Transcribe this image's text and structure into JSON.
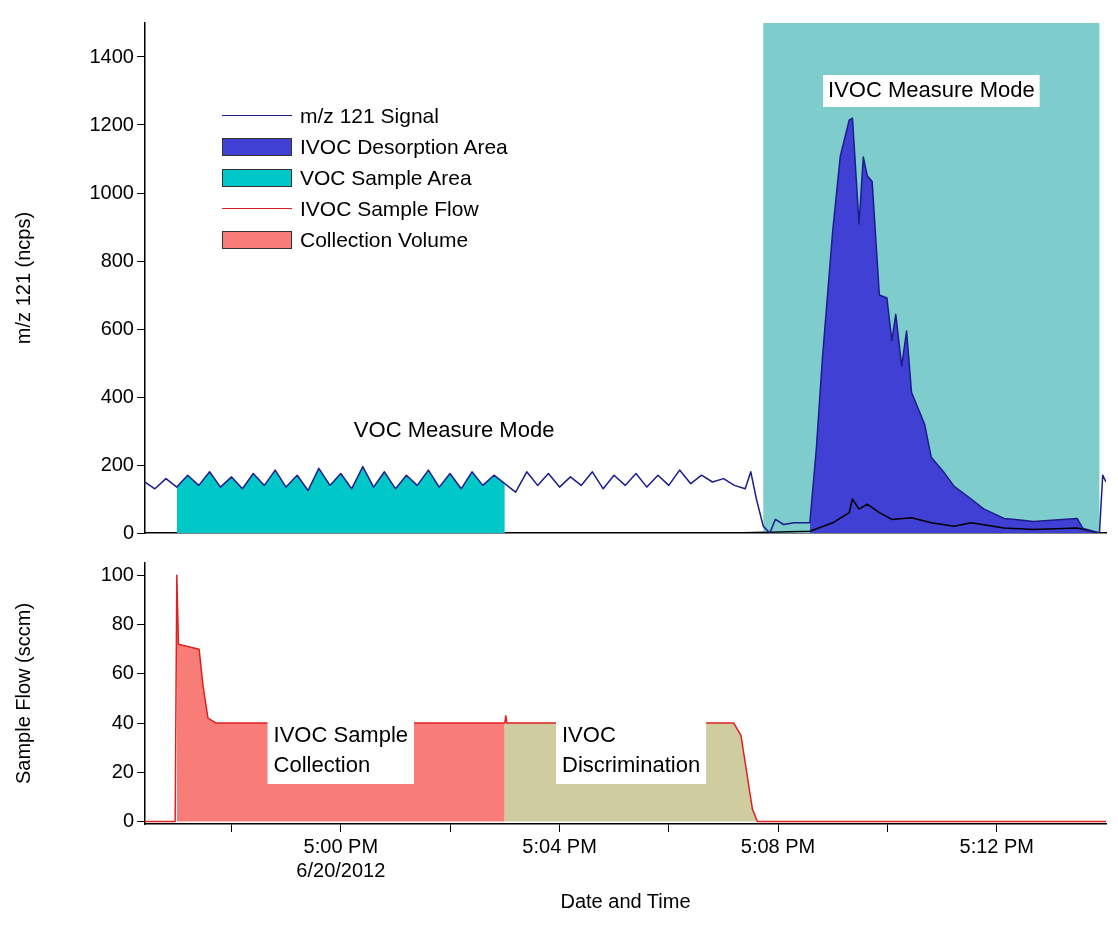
{
  "chart_data": [
    {
      "type": "line",
      "ylabel": "m/z 121 (ncps)",
      "xlim": [
        16.9403,
        17.2333
      ],
      "tick_labels": "y",
      "ylim": [
        0,
        1500
      ],
      "yticks": [
        0,
        200,
        400,
        600,
        800,
        1000,
        1200,
        1400
      ],
      "legend": "top left",
      "marker": "none",
      "line_style": "solid",
      "bands": [
        {
          "axis": "x",
          "from": 17.1288,
          "to": 17.2313,
          "label": "IVOC Measure Mode",
          "color": "#7ecccc"
        }
      ],
      "annotations": [
        "VOC Measure Mode"
      ],
      "series": [
        {
          "name": "m/z 121 Signal",
          "color": "#1c1c8c",
          "x": [
            16.9403,
            16.9433,
            16.9467,
            16.95,
            16.9533,
            16.9567,
            16.96,
            16.9633,
            16.9667,
            16.97,
            16.9733,
            16.9767,
            16.98,
            16.9833,
            16.9867,
            16.99,
            16.9933,
            16.9967,
            17,
            17.0033,
            17.0067,
            17.01,
            17.0133,
            17.0167,
            17.02,
            17.0233,
            17.0267,
            17.03,
            17.0333,
            17.0367,
            17.04,
            17.0433,
            17.0467,
            17.05,
            17.0533,
            17.0567,
            17.06,
            17.0633,
            17.0667,
            17.07,
            17.0733,
            17.0767,
            17.08,
            17.0833,
            17.0867,
            17.09,
            17.0933,
            17.0967,
            17.1,
            17.1033,
            17.1067,
            17.11,
            17.1133,
            17.1167,
            17.12,
            17.1233,
            17.125,
            17.1267,
            17.1288,
            17.1308,
            17.1325,
            17.135,
            17.1383,
            17.143,
            17.145,
            17.1468,
            17.15,
            17.1523,
            17.155,
            17.156,
            17.158,
            17.1593,
            17.1605,
            17.162,
            17.1642,
            17.1665,
            17.168,
            17.1692,
            17.171,
            17.1725,
            17.174,
            17.178,
            17.18,
            17.184,
            17.187,
            17.1922,
            17.196,
            17.2022,
            17.2112,
            17.2245,
            17.2262,
            17.2313,
            17.2323,
            17.2333
          ],
          "values": [
            150,
            130,
            160,
            135,
            170,
            140,
            180,
            135,
            165,
            130,
            175,
            140,
            185,
            135,
            170,
            125,
            190,
            140,
            175,
            130,
            195,
            135,
            180,
            130,
            170,
            140,
            185,
            135,
            175,
            130,
            180,
            140,
            170,
            145,
            120,
            180,
            140,
            175,
            135,
            165,
            140,
            180,
            130,
            170,
            140,
            175,
            135,
            170,
            140,
            185,
            145,
            170,
            150,
            160,
            140,
            130,
            180,
            100,
            20,
            0,
            40,
            25,
            30,
            30,
            250,
            509,
            891,
            1109,
            1214,
            1220,
            909,
            1106,
            1051,
            1034,
            700,
            691,
            566,
            643,
            491,
            594,
            414,
            320,
            223,
            177,
            137,
            100,
            71,
            43,
            34,
            43,
            14,
            0,
            170,
            150
          ]
        },
        {
          "name": "IVOC Desorption Area",
          "type": "area",
          "color": "#4040d4",
          "x": [
            17.143,
            17.145,
            17.1468,
            17.15,
            17.1523,
            17.155,
            17.156,
            17.158,
            17.1593,
            17.1605,
            17.162,
            17.1642,
            17.1665,
            17.168,
            17.1692,
            17.171,
            17.1725,
            17.174,
            17.178,
            17.18,
            17.184,
            17.187,
            17.1922,
            17.196,
            17.2022,
            17.2112,
            17.2245,
            17.2262,
            17.2313
          ],
          "values": [
            30,
            250,
            509,
            891,
            1109,
            1214,
            1220,
            909,
            1106,
            1051,
            1034,
            700,
            691,
            566,
            643,
            491,
            594,
            414,
            320,
            223,
            177,
            137,
            100,
            71,
            43,
            34,
            43,
            14,
            0
          ]
        },
        {
          "name": "VOC Sample Area",
          "type": "area",
          "color": "#00c8c8",
          "x": [
            16.95,
            16.9533,
            16.9567,
            16.96,
            16.9633,
            16.9667,
            16.97,
            16.9733,
            16.9767,
            16.98,
            16.9833,
            16.9867,
            16.99,
            16.9933,
            16.9967,
            17,
            17.0033,
            17.0067,
            17.01,
            17.0133,
            17.0167,
            17.02,
            17.0233,
            17.0267,
            17.03,
            17.0333,
            17.0367,
            17.04,
            17.0433,
            17.0467,
            17.05
          ],
          "values": [
            135,
            170,
            140,
            180,
            135,
            165,
            130,
            175,
            140,
            185,
            135,
            170,
            125,
            190,
            140,
            175,
            130,
            195,
            135,
            180,
            130,
            170,
            140,
            185,
            135,
            175,
            130,
            180,
            140,
            170,
            145
          ]
        },
        {
          "color": "#000000",
          "x": [
            17.12,
            17.143,
            17.15,
            17.155,
            17.156,
            17.158,
            17.1605,
            17.1642,
            17.168,
            17.174,
            17.18,
            17.187,
            17.1922,
            17.2022,
            17.2112,
            17.2245,
            17.2313
          ],
          "values": [
            0,
            5,
            30,
            60,
            100,
            70,
            85,
            60,
            40,
            45,
            30,
            20,
            30,
            15,
            10,
            15,
            0
          ]
        }
      ]
    },
    {
      "type": "line",
      "xlabel": "Date and Time",
      "ylabel": "Sample Flow (sccm)",
      "xlim": [
        16.9403,
        17.2333
      ],
      "xticks": [
        {
          "value": 16.9667,
          "label": null
        },
        {
          "value": 17,
          "label": "5:00 PM\n6/20/2012"
        },
        {
          "value": 17.0333,
          "label": null
        },
        {
          "value": 17.0667,
          "label": "5:04 PM"
        },
        {
          "value": 17.1,
          "label": null
        },
        {
          "value": 17.1333,
          "label": "5:08 PM"
        },
        {
          "value": 17.1667,
          "label": null
        },
        {
          "value": 17.2,
          "label": "5:12 PM"
        }
      ],
      "ylim": [
        -1,
        105
      ],
      "yticks": [
        0,
        20,
        40,
        60,
        80,
        100
      ],
      "legend": "top left",
      "marker": "none",
      "line_style": "solid",
      "annotations": [
        "IVOC Sample Collection",
        "IVOC Discrimination"
      ],
      "series": [
        {
          "name": "IVOC Sample Flow",
          "color": "#e02020",
          "x": [
            16.9403,
            16.9495,
            16.95,
            16.9505,
            16.9568,
            16.958,
            16.9595,
            16.962,
            17.05,
            17.0503,
            17.0506,
            17.1198,
            17.122,
            17.1255,
            17.127,
            17.2333
          ],
          "values": [
            0,
            0,
            100,
            72,
            70,
            55,
            42,
            40,
            40,
            43,
            40,
            40,
            35,
            5,
            0,
            0
          ]
        },
        {
          "name": "Collection Volume",
          "type": "area",
          "color": "#f87c78",
          "x": [
            16.95,
            16.9505,
            16.9568,
            16.958,
            16.9595,
            16.962,
            17.05
          ],
          "values": [
            100,
            72,
            70,
            55,
            42,
            40,
            40
          ]
        },
        {
          "type": "area",
          "color": "#cfcca0",
          "x": [
            17.05,
            17.1198,
            17.122,
            17.1255,
            17.127
          ],
          "values": [
            40,
            40,
            35,
            5,
            0
          ]
        }
      ]
    }
  ]
}
